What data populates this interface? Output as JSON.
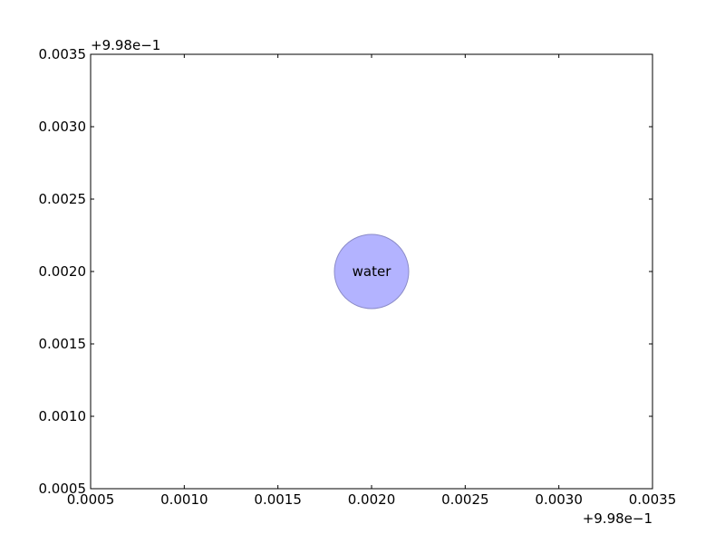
{
  "chart_data": {
    "type": "scatter",
    "title": "",
    "xlabel": "",
    "ylabel": "",
    "x_offset_text": "+9.98e−1",
    "y_offset_text": "+9.98e−1",
    "xlim": [
      0.0005,
      0.0035
    ],
    "ylim": [
      0.0005,
      0.0035
    ],
    "x_ticks": [
      0.0005,
      0.001,
      0.0015,
      0.002,
      0.0025,
      0.003,
      0.0035
    ],
    "y_ticks": [
      0.0005,
      0.001,
      0.0015,
      0.002,
      0.0025,
      0.003,
      0.0035
    ],
    "x_tick_labels": [
      "0.0005",
      "0.0010",
      "0.0015",
      "0.0020",
      "0.0025",
      "0.0030",
      "0.0035"
    ],
    "y_tick_labels": [
      "0.0005",
      "0.0010",
      "0.0015",
      "0.0020",
      "0.0025",
      "0.0030",
      "0.0035"
    ],
    "grid": false,
    "points": [
      {
        "x": 0.002,
        "y": 0.002,
        "label": "water",
        "color": "#b3b3ff",
        "edge_color": "#8c8cc8"
      }
    ]
  }
}
